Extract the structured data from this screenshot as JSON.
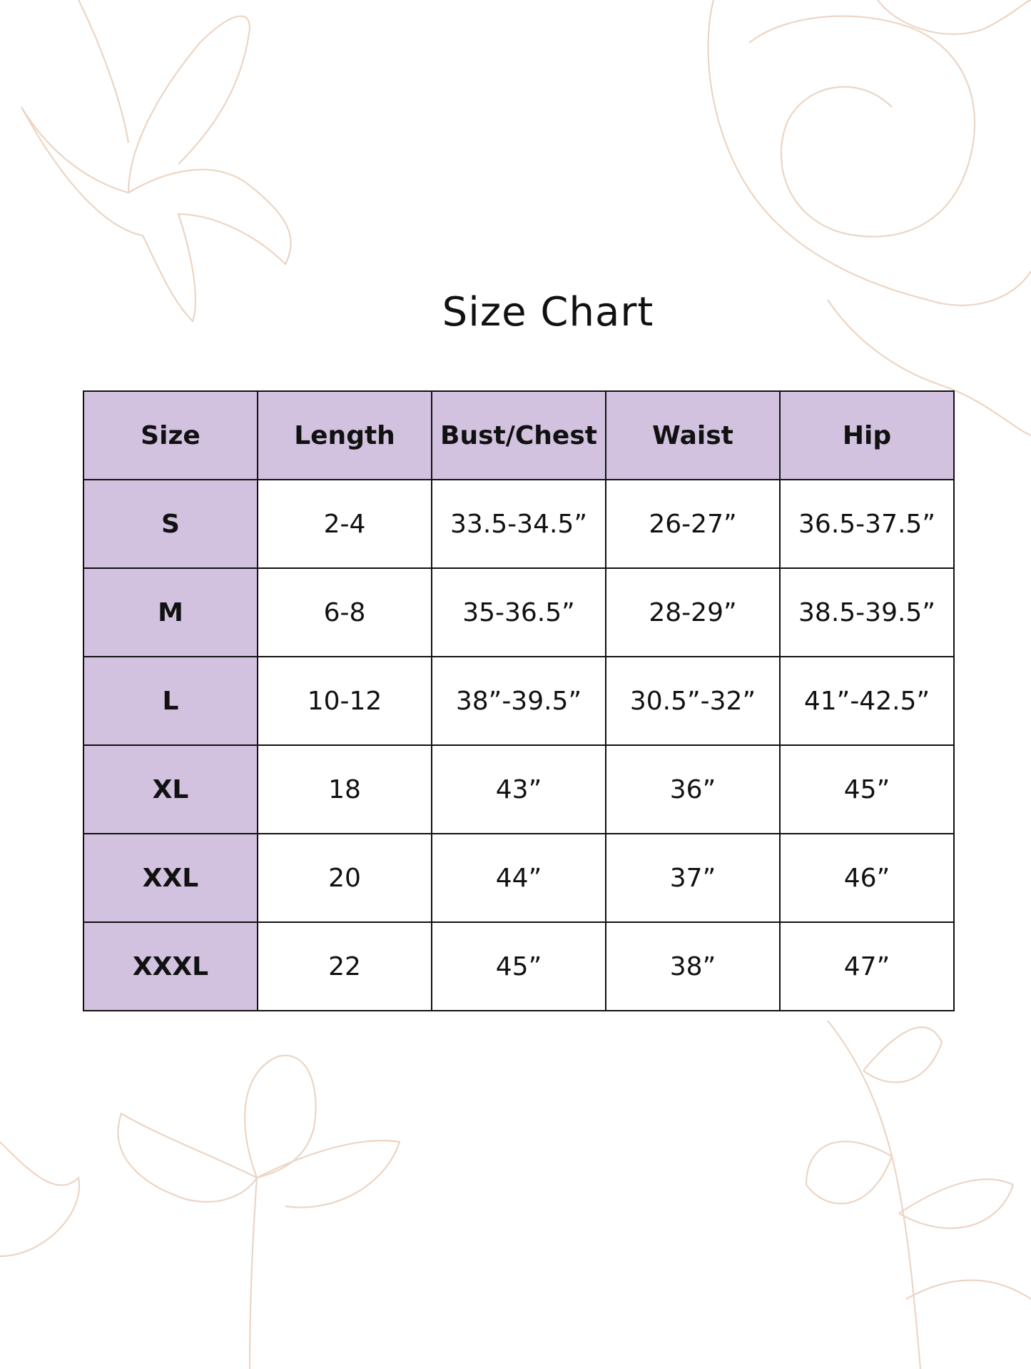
{
  "title": "Size Chart",
  "colors": {
    "header_fill": "#d2c2e0",
    "border": "#111111",
    "floral_line": "#ecd5c4"
  },
  "decoration": "floral-line-art",
  "table": {
    "headers": [
      "Size",
      "Length",
      "Bust/Chest",
      "Waist",
      "Hip"
    ],
    "rows": [
      [
        "S",
        "2-4",
        "33.5-34.5”",
        "26-27”",
        "36.5-37.5”"
      ],
      [
        "M",
        "6-8",
        "35-36.5”",
        "28-29”",
        "38.5-39.5”"
      ],
      [
        "L",
        "10-12",
        "38”-39.5”",
        "30.5”-32”",
        "41”-42.5”"
      ],
      [
        "XL",
        "18",
        "43”",
        "36”",
        "45”"
      ],
      [
        "XXL",
        "20",
        "44”",
        "37”",
        "46”"
      ],
      [
        "XXXL",
        "22",
        "45”",
        "38”",
        "47”"
      ]
    ]
  }
}
